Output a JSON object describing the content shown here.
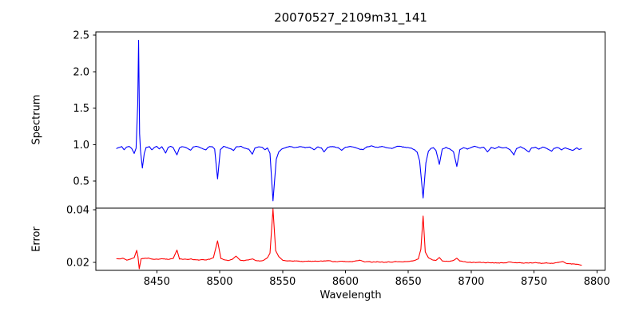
{
  "chart_data": {
    "type": "line",
    "title": "20070527_2109m31_141",
    "xlabel": "Wavelength",
    "xlim": [
      8401.5,
      8806.5
    ],
    "xticks": [
      8450,
      8500,
      8550,
      8600,
      8650,
      8700,
      8750,
      8800
    ],
    "xtick_labels": [
      "8450",
      "8500",
      "8550",
      "8600",
      "8650",
      "8700",
      "8750",
      "8800"
    ],
    "grid": false,
    "legend": false,
    "panels": [
      {
        "name": "spectrum",
        "ylabel": "Spectrum",
        "color": "#0000ff",
        "ylim": [
          0.13,
          2.545
        ],
        "yticks": [
          0.5,
          1.0,
          1.5,
          2.0,
          2.5
        ],
        "ytick_labels": [
          "0.5",
          "1.0",
          "1.5",
          "2.0",
          "2.5"
        ],
        "noise_amplitude": 0.009,
        "noise_seed": 7,
        "noise_slope_damp": 60,
        "anchors": [
          [
            8418,
            0.95
          ],
          [
            8420,
            0.96
          ],
          [
            8422,
            0.975
          ],
          [
            8424,
            0.93
          ],
          [
            8426,
            0.97
          ],
          [
            8428,
            0.975
          ],
          [
            8430,
            0.95
          ],
          [
            8432,
            0.88
          ],
          [
            8433.5,
            0.95
          ],
          [
            8434.8,
            1.55
          ],
          [
            8435.5,
            2.43
          ],
          [
            8436.3,
            1.15
          ],
          [
            8437,
            0.92
          ],
          [
            8438.5,
            0.68
          ],
          [
            8440,
            0.88
          ],
          [
            8441.5,
            0.96
          ],
          [
            8444,
            0.975
          ],
          [
            8446,
            0.93
          ],
          [
            8448,
            0.96
          ],
          [
            8450,
            0.975
          ],
          [
            8452,
            0.94
          ],
          [
            8454,
            0.97
          ],
          [
            8457,
            0.885
          ],
          [
            8459,
            0.96
          ],
          [
            8461,
            0.975
          ],
          [
            8463,
            0.96
          ],
          [
            8466,
            0.86
          ],
          [
            8468,
            0.955
          ],
          [
            8470,
            0.97
          ],
          [
            8473,
            0.96
          ],
          [
            8477,
            0.925
          ],
          [
            8479,
            0.965
          ],
          [
            8482,
            0.975
          ],
          [
            8485,
            0.955
          ],
          [
            8489,
            0.93
          ],
          [
            8491,
            0.97
          ],
          [
            8494,
            0.975
          ],
          [
            8496,
            0.94
          ],
          [
            8498.3,
            0.53
          ],
          [
            8500.5,
            0.93
          ],
          [
            8503,
            0.975
          ],
          [
            8506,
            0.96
          ],
          [
            8509,
            0.94
          ],
          [
            8511,
            0.92
          ],
          [
            8513,
            0.965
          ],
          [
            8517,
            0.975
          ],
          [
            8520,
            0.95
          ],
          [
            8523,
            0.94
          ],
          [
            8526,
            0.87
          ],
          [
            8528,
            0.95
          ],
          [
            8531,
            0.97
          ],
          [
            8534,
            0.96
          ],
          [
            8536,
            0.93
          ],
          [
            8538,
            0.955
          ],
          [
            8540,
            0.88
          ],
          [
            8542.4,
            0.23
          ],
          [
            8545,
            0.8
          ],
          [
            8547,
            0.9
          ],
          [
            8550,
            0.945
          ],
          [
            8553,
            0.965
          ],
          [
            8556,
            0.975
          ],
          [
            8560,
            0.96
          ],
          [
            8564,
            0.975
          ],
          [
            8568,
            0.96
          ],
          [
            8572,
            0.965
          ],
          [
            8575,
            0.93
          ],
          [
            8578,
            0.97
          ],
          [
            8581,
            0.955
          ],
          [
            8583,
            0.9
          ],
          [
            8586,
            0.965
          ],
          [
            8590,
            0.975
          ],
          [
            8594,
            0.96
          ],
          [
            8597,
            0.92
          ],
          [
            8600,
            0.965
          ],
          [
            8604,
            0.975
          ],
          [
            8608,
            0.96
          ],
          [
            8611,
            0.94
          ],
          [
            8614,
            0.93
          ],
          [
            8617,
            0.97
          ],
          [
            8621,
            0.98
          ],
          [
            8625,
            0.965
          ],
          [
            8629,
            0.975
          ],
          [
            8633,
            0.96
          ],
          [
            8637,
            0.945
          ],
          [
            8641,
            0.975
          ],
          [
            8645,
            0.97
          ],
          [
            8649,
            0.96
          ],
          [
            8652,
            0.955
          ],
          [
            8655,
            0.93
          ],
          [
            8657,
            0.9
          ],
          [
            8659,
            0.78
          ],
          [
            8661.8,
            0.27
          ],
          [
            8664,
            0.75
          ],
          [
            8666,
            0.91
          ],
          [
            8668,
            0.95
          ],
          [
            8670,
            0.96
          ],
          [
            8672,
            0.92
          ],
          [
            8674.7,
            0.73
          ],
          [
            8677,
            0.94
          ],
          [
            8680,
            0.965
          ],
          [
            8683,
            0.94
          ],
          [
            8686,
            0.9
          ],
          [
            8688.6,
            0.7
          ],
          [
            8691,
            0.93
          ],
          [
            8694,
            0.96
          ],
          [
            8697,
            0.94
          ],
          [
            8700,
            0.965
          ],
          [
            8703,
            0.975
          ],
          [
            8707,
            0.95
          ],
          [
            8710,
            0.965
          ],
          [
            8713,
            0.9
          ],
          [
            8716,
            0.96
          ],
          [
            8719,
            0.945
          ],
          [
            8722,
            0.97
          ],
          [
            8725,
            0.955
          ],
          [
            8728,
            0.96
          ],
          [
            8731,
            0.93
          ],
          [
            8734,
            0.86
          ],
          [
            8736,
            0.945
          ],
          [
            8739,
            0.97
          ],
          [
            8742,
            0.95
          ],
          [
            8746,
            0.9
          ],
          [
            8748,
            0.955
          ],
          [
            8751,
            0.965
          ],
          [
            8754,
            0.94
          ],
          [
            8757,
            0.965
          ],
          [
            8760,
            0.95
          ],
          [
            8764,
            0.91
          ],
          [
            8766,
            0.95
          ],
          [
            8769,
            0.96
          ],
          [
            8772,
            0.93
          ],
          [
            8775,
            0.955
          ],
          [
            8778,
            0.94
          ],
          [
            8781,
            0.92
          ],
          [
            8784,
            0.955
          ],
          [
            8786,
            0.93
          ],
          [
            8788,
            0.95
          ]
        ]
      },
      {
        "name": "error",
        "ylabel": "Error",
        "color": "#ff0000",
        "ylim": [
          0.017,
          0.0406
        ],
        "yticks": [
          0.02,
          0.04
        ],
        "ytick_labels": [
          "0.02",
          "0.04"
        ],
        "noise_amplitude": 0.00025,
        "noise_seed": 11,
        "noise_slope_damp": 6000,
        "anchors": [
          [
            8418,
            0.0214
          ],
          [
            8420,
            0.0213
          ],
          [
            8423,
            0.0216
          ],
          [
            8426,
            0.0209
          ],
          [
            8429,
            0.0213
          ],
          [
            8432,
            0.0218
          ],
          [
            8434,
            0.0246
          ],
          [
            8435,
            0.0222
          ],
          [
            8436,
            0.0176
          ],
          [
            8437.5,
            0.0214
          ],
          [
            8440,
            0.0215
          ],
          [
            8443,
            0.0217
          ],
          [
            8446,
            0.0213
          ],
          [
            8450,
            0.0212
          ],
          [
            8454,
            0.0214
          ],
          [
            8457,
            0.0213
          ],
          [
            8460,
            0.0212
          ],
          [
            8463,
            0.0215
          ],
          [
            8466,
            0.0247
          ],
          [
            8468,
            0.0214
          ],
          [
            8471,
            0.0212
          ],
          [
            8474,
            0.0211
          ],
          [
            8477,
            0.0213
          ],
          [
            8480,
            0.021
          ],
          [
            8483,
            0.0209
          ],
          [
            8486,
            0.0211
          ],
          [
            8489,
            0.021
          ],
          [
            8492,
            0.0212
          ],
          [
            8495,
            0.0218
          ],
          [
            8498.3,
            0.0282
          ],
          [
            8501,
            0.0214
          ],
          [
            8504,
            0.021
          ],
          [
            8507,
            0.0208
          ],
          [
            8510,
            0.0212
          ],
          [
            8513,
            0.0224
          ],
          [
            8516,
            0.021
          ],
          [
            8519,
            0.0207
          ],
          [
            8522,
            0.0209
          ],
          [
            8526,
            0.0214
          ],
          [
            8529,
            0.0206
          ],
          [
            8532,
            0.0206
          ],
          [
            8535,
            0.0208
          ],
          [
            8538,
            0.0218
          ],
          [
            8540,
            0.0235
          ],
          [
            8542.4,
            0.0403
          ],
          [
            8544.5,
            0.0245
          ],
          [
            8547,
            0.0222
          ],
          [
            8550,
            0.0209
          ],
          [
            8554,
            0.0206
          ],
          [
            8558,
            0.0205
          ],
          [
            8562,
            0.0206
          ],
          [
            8566,
            0.0204
          ],
          [
            8570,
            0.0204
          ],
          [
            8574,
            0.0205
          ],
          [
            8578,
            0.0204
          ],
          [
            8582,
            0.0205
          ],
          [
            8586,
            0.0207
          ],
          [
            8590,
            0.0204
          ],
          [
            8594,
            0.0203
          ],
          [
            8598,
            0.0204
          ],
          [
            8602,
            0.0203
          ],
          [
            8606,
            0.0204
          ],
          [
            8611,
            0.0209
          ],
          [
            8615,
            0.0203
          ],
          [
            8620,
            0.0202
          ],
          [
            8625,
            0.0203
          ],
          [
            8630,
            0.0202
          ],
          [
            8635,
            0.0202
          ],
          [
            8640,
            0.0203
          ],
          [
            8645,
            0.0202
          ],
          [
            8650,
            0.0204
          ],
          [
            8654,
            0.0206
          ],
          [
            8658,
            0.0214
          ],
          [
            8660,
            0.025
          ],
          [
            8661.8,
            0.0376
          ],
          [
            8663.5,
            0.024
          ],
          [
            8666,
            0.0218
          ],
          [
            8669,
            0.021
          ],
          [
            8672,
            0.0208
          ],
          [
            8674.7,
            0.0219
          ],
          [
            8677,
            0.0207
          ],
          [
            8680,
            0.0204
          ],
          [
            8683,
            0.0204
          ],
          [
            8686,
            0.0208
          ],
          [
            8688.6,
            0.0216
          ],
          [
            8691,
            0.0206
          ],
          [
            8695,
            0.0202
          ],
          [
            8700,
            0.02
          ],
          [
            8705,
            0.02
          ],
          [
            8710,
            0.02
          ],
          [
            8715,
            0.0199
          ],
          [
            8720,
            0.0199
          ],
          [
            8725,
            0.0199
          ],
          [
            8730,
            0.0201
          ],
          [
            8735,
            0.02
          ],
          [
            8740,
            0.0198
          ],
          [
            8745,
            0.0198
          ],
          [
            8750,
            0.0199
          ],
          [
            8755,
            0.0198
          ],
          [
            8760,
            0.0198
          ],
          [
            8765,
            0.0197
          ],
          [
            8769,
            0.02
          ],
          [
            8773,
            0.0203
          ],
          [
            8776,
            0.0196
          ],
          [
            8780,
            0.0194
          ],
          [
            8784,
            0.0194
          ],
          [
            8788,
            0.019
          ]
        ]
      }
    ]
  }
}
